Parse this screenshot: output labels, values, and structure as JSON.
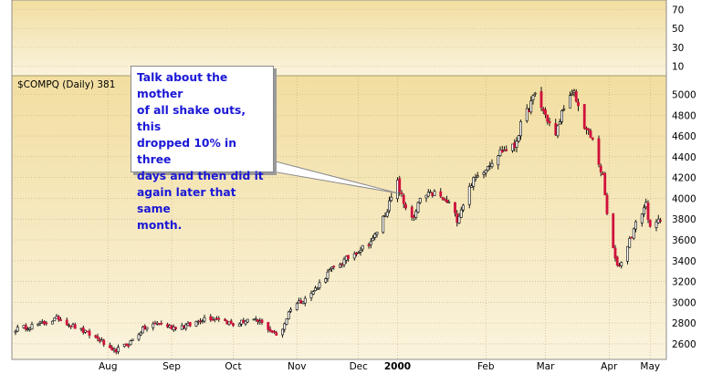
{
  "chart_data": {
    "type": "candlestick",
    "title": "",
    "legend_label": "$COMPQ (Daily) 381",
    "colors": {
      "background": "#f2dea0",
      "background_bottom": "#faf3dd",
      "up_candle": "#ffffff",
      "down_candle": "#d0103a",
      "wick": "#000000",
      "gridline": "#bfae80"
    },
    "indicator_panel": {
      "ylim": [
        0,
        80
      ],
      "yticks": [
        10,
        30,
        50,
        70
      ]
    },
    "price_panel": {
      "ylim": [
        2450,
        5180
      ],
      "yticks": [
        2600,
        2800,
        3000,
        3200,
        3400,
        3600,
        3800,
        4000,
        4200,
        4400,
        4600,
        4800,
        5000
      ],
      "grid": true
    },
    "xlim": [
      "1999-07-01",
      "2000-05-12"
    ],
    "x_ticks": [
      {
        "label": "Aug",
        "date": "1999-08-15"
      },
      {
        "label": "Sep",
        "date": "1999-09-15"
      },
      {
        "label": "Oct",
        "date": "1999-10-15"
      },
      {
        "label": "Nov",
        "date": "1999-11-15"
      },
      {
        "label": "Dec",
        "date": "1999-12-15"
      },
      {
        "label": "2000",
        "date": "2000-01-03"
      },
      {
        "label": "Feb",
        "date": "2000-02-15"
      },
      {
        "label": "Mar",
        "date": "2000-03-15"
      },
      {
        "label": "Apr",
        "date": "2000-04-15"
      },
      {
        "label": "May",
        "date": "2000-05-05"
      }
    ],
    "path": [
      [
        "1999-07-01",
        2740
      ],
      [
        "1999-07-15",
        2800
      ],
      [
        "1999-07-22",
        2850
      ],
      [
        "1999-07-29",
        2770
      ],
      [
        "1999-08-05",
        2700
      ],
      [
        "1999-08-11",
        2640
      ],
      [
        "1999-08-17",
        2520
      ],
      [
        "1999-08-25",
        2600
      ],
      [
        "1999-09-01",
        2740
      ],
      [
        "1999-09-08",
        2800
      ],
      [
        "1999-09-15",
        2760
      ],
      [
        "1999-09-24",
        2780
      ],
      [
        "1999-10-01",
        2850
      ],
      [
        "1999-10-08",
        2850
      ],
      [
        "1999-10-15",
        2780
      ],
      [
        "1999-10-22",
        2830
      ],
      [
        "1999-10-28",
        2810
      ],
      [
        "1999-11-01",
        2750
      ],
      [
        "1999-11-05",
        2680
      ],
      [
        "1999-11-08",
        2750
      ],
      [
        "1999-11-12",
        2950
      ],
      [
        "1999-11-22",
        3080
      ],
      [
        "1999-12-01",
        3300
      ],
      [
        "1999-12-08",
        3400
      ],
      [
        "1999-12-15",
        3500
      ],
      [
        "1999-12-22",
        3600
      ],
      [
        "1999-12-29",
        3900
      ],
      [
        "2000-01-03",
        4150
      ],
      [
        "2000-01-06",
        3950
      ],
      [
        "2000-01-11",
        3800
      ],
      [
        "2000-01-14",
        4000
      ],
      [
        "2000-01-21",
        4050
      ],
      [
        "2000-01-28",
        3950
      ],
      [
        "2000-02-01",
        3800
      ],
      [
        "2000-02-08",
        4150
      ],
      [
        "2000-02-15",
        4300
      ],
      [
        "2000-02-22",
        4450
      ],
      [
        "2000-02-29",
        4500
      ],
      [
        "2000-03-03",
        4700
      ],
      [
        "2000-03-10",
        5000
      ],
      [
        "2000-03-15",
        4800
      ],
      [
        "2000-03-20",
        4600
      ],
      [
        "2000-03-24",
        4900
      ],
      [
        "2000-03-29",
        5000
      ],
      [
        "2000-04-03",
        4700
      ],
      [
        "2000-04-07",
        4550
      ],
      [
        "2000-04-12",
        4200
      ],
      [
        "2000-04-14",
        3850
      ],
      [
        "2000-04-18",
        3400
      ],
      [
        "2000-04-20",
        3350
      ],
      [
        "2000-04-25",
        3600
      ],
      [
        "2000-04-28",
        3750
      ],
      [
        "2000-05-03",
        3950
      ],
      [
        "2000-05-05",
        3700
      ],
      [
        "2000-05-10",
        3800
      ]
    ],
    "annotation": {
      "lines": [
        "Talk about the mother",
        "of all shake outs, this",
        "dropped 10% in three",
        "days and then did it",
        "again later that same",
        "month."
      ],
      "points_to": {
        "date": "2000-01-03",
        "value": 4050
      }
    }
  }
}
